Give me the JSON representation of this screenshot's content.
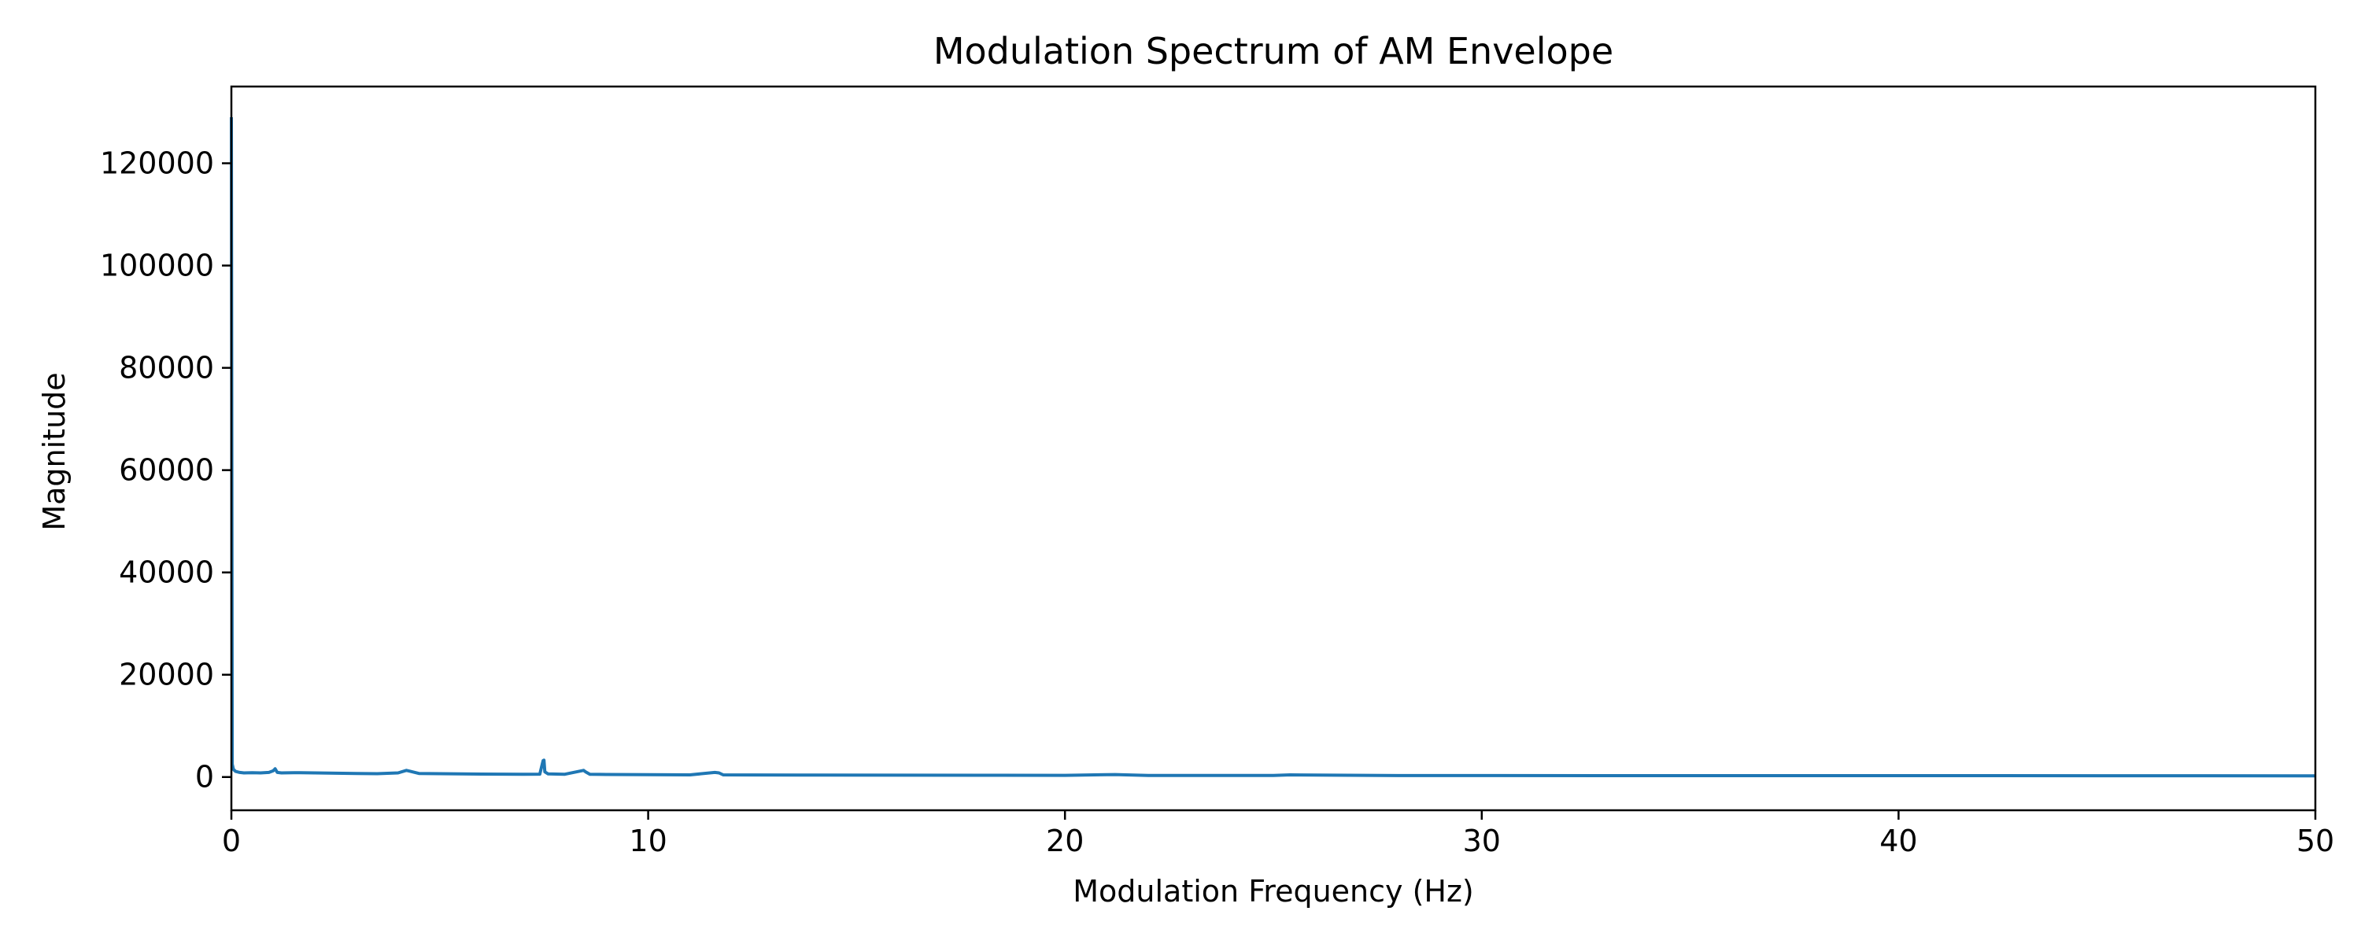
{
  "chart_data": {
    "type": "line",
    "title": "Modulation Spectrum of AM Envelope",
    "xlabel": "Modulation Frequency (Hz)",
    "ylabel": "Magnitude",
    "xlim": [
      0,
      50
    ],
    "ylim": [
      -6500,
      135000
    ],
    "xticks": [
      0,
      10,
      20,
      30,
      40,
      50
    ],
    "yticks": [
      0,
      20000,
      40000,
      60000,
      80000,
      100000,
      120000
    ],
    "grid": false,
    "legend": "none",
    "series": [
      {
        "color": "#1f77b4",
        "x": [
          0,
          0.02,
          0.05,
          0.1,
          0.2,
          0.3,
          0.5,
          0.7,
          0.9,
          1.0,
          1.05,
          1.1,
          1.2,
          1.5,
          2.0,
          2.5,
          3.0,
          3.5,
          4.0,
          4.2,
          4.3,
          4.5,
          5.0,
          5.5,
          6.0,
          6.5,
          7.0,
          7.4,
          7.48,
          7.5,
          7.52,
          7.6,
          8.0,
          8.45,
          8.5,
          8.6,
          9.0,
          10.0,
          11.0,
          11.6,
          11.7,
          11.8,
          12.5,
          14.0,
          16.0,
          18.0,
          20.0,
          21.2,
          22.0,
          25.0,
          25.4,
          28.0,
          30.0,
          35.0,
          40.0,
          45.0,
          50.0
        ],
        "y": [
          129000,
          2500,
          1500,
          1100,
          900,
          800,
          850,
          800,
          900,
          1200,
          1600,
          900,
          800,
          850,
          800,
          750,
          700,
          650,
          800,
          1300,
          1100,
          700,
          650,
          600,
          580,
          560,
          550,
          560,
          3200,
          3300,
          1000,
          600,
          550,
          1300,
          1000,
          550,
          500,
          450,
          420,
          900,
          800,
          420,
          400,
          380,
          360,
          350,
          330,
          480,
          320,
          300,
          420,
          290,
          280,
          270,
          260,
          250,
          240
        ]
      }
    ]
  }
}
